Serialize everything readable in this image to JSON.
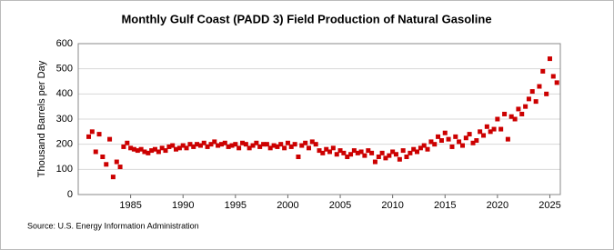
{
  "chart_data": {
    "type": "scatter",
    "title": "Monthly Gulf Coast (PADD 3) Field Production of Natural Gasoline",
    "y_label": "Thousand Barrels per Day",
    "source": "Source: U.S. Energy Information Administration",
    "xlim": [
      1980,
      2026
    ],
    "xticks": [
      1985,
      1990,
      1995,
      2000,
      2005,
      2010,
      2015,
      2020,
      2025
    ],
    "ylim": [
      0,
      600
    ],
    "yticks": [
      0,
      100,
      200,
      300,
      400,
      500,
      600
    ],
    "grid": true,
    "series": [
      {
        "name": "Natural Gasoline",
        "color": "#cc0000",
        "x": [
          1981,
          1981.33,
          1981.67,
          1982,
          1982.33,
          1982.67,
          1983,
          1983.33,
          1983.67,
          1984,
          1984.33,
          1984.67,
          1985,
          1985.33,
          1985.67,
          1986,
          1986.33,
          1986.67,
          1987,
          1987.33,
          1987.67,
          1988,
          1988.33,
          1988.67,
          1989,
          1989.33,
          1989.67,
          1990,
          1990.33,
          1990.67,
          1991,
          1991.33,
          1991.67,
          1992,
          1992.33,
          1992.67,
          1993,
          1993.33,
          1993.67,
          1994,
          1994.33,
          1994.67,
          1995,
          1995.33,
          1995.67,
          1996,
          1996.33,
          1996.67,
          1997,
          1997.33,
          1997.67,
          1998,
          1998.33,
          1998.67,
          1999,
          1999.33,
          1999.67,
          2000,
          2000.33,
          2000.67,
          2001,
          2001.33,
          2001.67,
          2002,
          2002.33,
          2002.67,
          2003,
          2003.33,
          2003.67,
          2004,
          2004.33,
          2004.67,
          2005,
          2005.33,
          2005.67,
          2006,
          2006.33,
          2006.67,
          2007,
          2007.33,
          2007.67,
          2008,
          2008.33,
          2008.67,
          2009,
          2009.33,
          2009.67,
          2010,
          2010.33,
          2010.67,
          2011,
          2011.33,
          2011.67,
          2012,
          2012.33,
          2012.67,
          2013,
          2013.33,
          2013.67,
          2014,
          2014.33,
          2014.67,
          2015,
          2015.33,
          2015.67,
          2016,
          2016.33,
          2016.67,
          2017,
          2017.33,
          2017.67,
          2018,
          2018.33,
          2018.67,
          2019,
          2019.33,
          2019.67,
          2020,
          2020.33,
          2020.67,
          2021,
          2021.33,
          2021.67,
          2022,
          2022.33,
          2022.67,
          2023,
          2023.33,
          2023.67,
          2024,
          2024.33,
          2024.67,
          2025,
          2025.33,
          2025.67
        ],
        "values": [
          230,
          250,
          170,
          240,
          150,
          120,
          220,
          70,
          130,
          110,
          190,
          205,
          185,
          180,
          175,
          180,
          170,
          165,
          175,
          180,
          170,
          185,
          175,
          190,
          195,
          180,
          185,
          195,
          185,
          200,
          190,
          200,
          195,
          205,
          190,
          200,
          210,
          195,
          200,
          205,
          190,
          195,
          200,
          185,
          205,
          200,
          185,
          195,
          205,
          190,
          200,
          200,
          185,
          195,
          190,
          200,
          185,
          205,
          190,
          200,
          150,
          195,
          205,
          185,
          210,
          200,
          175,
          165,
          180,
          170,
          185,
          160,
          175,
          165,
          150,
          160,
          175,
          165,
          170,
          155,
          175,
          165,
          130,
          150,
          165,
          145,
          155,
          170,
          160,
          140,
          175,
          150,
          165,
          180,
          170,
          185,
          195,
          180,
          210,
          200,
          230,
          215,
          245,
          220,
          190,
          230,
          210,
          195,
          225,
          240,
          205,
          215,
          250,
          235,
          270,
          250,
          260,
          300,
          260,
          320,
          220,
          310,
          300,
          340,
          320,
          350,
          380,
          410,
          370,
          430,
          490,
          400,
          540,
          470,
          445
        ]
      }
    ]
  }
}
